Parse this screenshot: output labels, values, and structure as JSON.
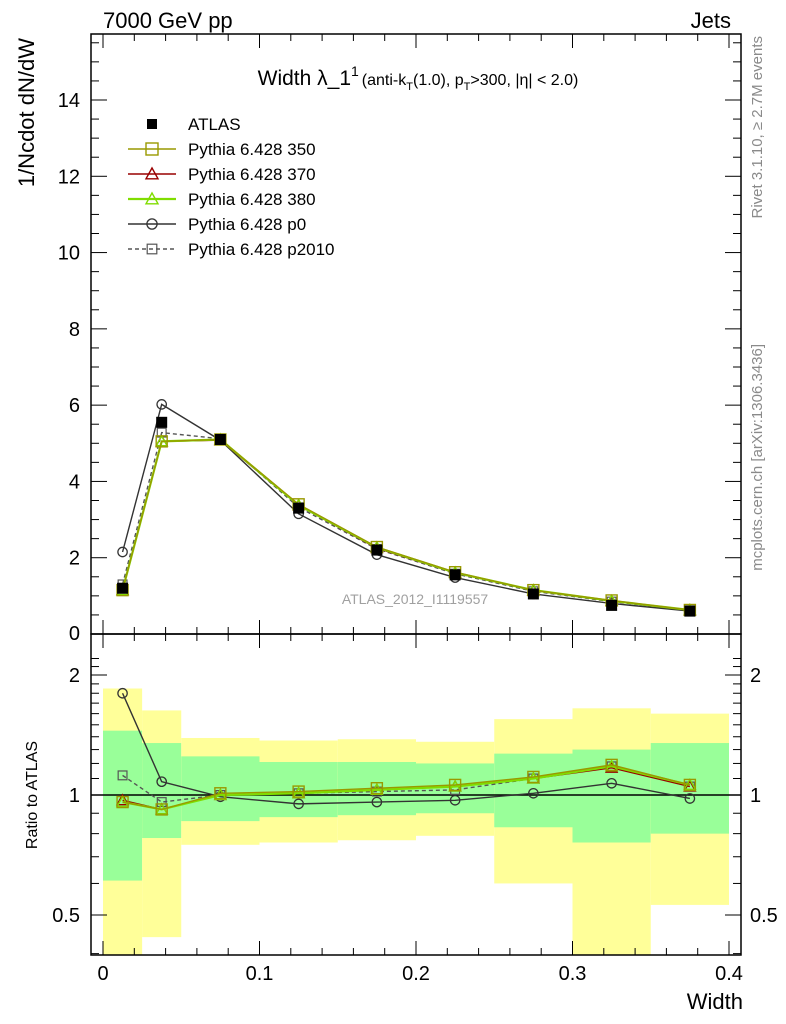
{
  "header": {
    "left": "7000 GeV pp",
    "right": "Jets"
  },
  "side_labels": {
    "rivet": "Rivet 3.1.10, ≥ 2.7M events",
    "mcplots": "mcplots.cern.ch [arXiv:1306.3436]"
  },
  "title": {
    "main": "Width λ_1",
    "sup": "1",
    "sub_pre": "(anti-k",
    "sub_T": "T",
    "sub_mid": "(1.0), p",
    "sub_T2": "T",
    "sub_post": ">300, |η| < 2.0)"
  },
  "watermark": "ATLAS_2012_I1119557",
  "colors": {
    "atlas": "#000000",
    "p350": "#999900",
    "p370": "#990000",
    "p380": "#80dd00",
    "p0": "#333333",
    "p2010": "#555555",
    "band_inner": "#99ff99",
    "band_outer": "#ffff99"
  },
  "chart_data": [
    {
      "type": "line",
      "panel": "main",
      "ylabel": "1/Ncdot dN/dW",
      "xlim": [
        0,
        0.4
      ],
      "ylim": [
        0,
        15.6
      ],
      "yticks": [
        0,
        2,
        4,
        6,
        8,
        10,
        12,
        14
      ],
      "x": [
        0.0125,
        0.0375,
        0.075,
        0.125,
        0.175,
        0.225,
        0.275,
        0.325,
        0.375
      ],
      "x_edges": [
        0,
        0.025,
        0.05,
        0.1,
        0.15,
        0.2,
        0.25,
        0.3,
        0.35,
        0.4
      ],
      "series": [
        {
          "name": "ATLAS",
          "key": "atlas",
          "marker": "filled-square",
          "values": [
            1.2,
            5.55,
            5.1,
            3.3,
            2.2,
            1.55,
            1.05,
            0.75,
            0.6
          ]
        },
        {
          "name": "Pythia 6.428 350",
          "key": "p350",
          "marker": "open-square",
          "values": [
            1.15,
            5.05,
            5.1,
            3.4,
            2.28,
            1.62,
            1.15,
            0.88,
            0.63
          ]
        },
        {
          "name": "Pythia 6.428 370",
          "key": "p370",
          "marker": "open-triangle",
          "values": [
            1.15,
            5.05,
            5.08,
            3.37,
            2.25,
            1.6,
            1.14,
            0.86,
            0.62
          ]
        },
        {
          "name": "Pythia 6.428 380",
          "key": "p380",
          "marker": "open-triangle",
          "values": [
            1.15,
            5.05,
            5.1,
            3.38,
            2.27,
            1.61,
            1.15,
            0.87,
            0.63
          ]
        },
        {
          "name": "Pythia 6.428 p0",
          "key": "p0",
          "marker": "open-circle",
          "values": [
            2.15,
            6.02,
            5.08,
            3.15,
            2.08,
            1.48,
            1.05,
            0.8,
            0.6
          ]
        },
        {
          "name": "Pythia 6.428 p2010",
          "key": "p2010",
          "marker": "open-square-dashed",
          "values": [
            1.3,
            5.28,
            5.12,
            3.32,
            2.23,
            1.58,
            1.12,
            0.85,
            0.62
          ]
        }
      ]
    },
    {
      "type": "line",
      "panel": "ratio",
      "ylabel": "Ratio to ATLAS",
      "xlabel": "Width",
      "xlim": [
        0,
        0.4
      ],
      "ylim": [
        0.35,
        2.3
      ],
      "yticks": [
        0.5,
        1,
        2
      ],
      "xticks": [
        0,
        0.1,
        0.2,
        0.3,
        0.4
      ],
      "x": [
        0.0125,
        0.0375,
        0.075,
        0.125,
        0.175,
        0.225,
        0.275,
        0.325,
        0.375
      ],
      "x_edges": [
        0,
        0.025,
        0.05,
        0.1,
        0.15,
        0.2,
        0.25,
        0.3,
        0.35,
        0.4
      ],
      "band_inner": {
        "low": [
          0.61,
          0.78,
          0.86,
          0.88,
          0.89,
          0.9,
          0.83,
          0.76,
          0.8
        ],
        "high": [
          1.45,
          1.35,
          1.25,
          1.21,
          1.21,
          1.2,
          1.27,
          1.3,
          1.35
        ]
      },
      "band_outer": {
        "low": [
          0.3,
          0.44,
          0.75,
          0.76,
          0.77,
          0.79,
          0.6,
          0.39,
          0.53
        ],
        "high": [
          1.85,
          1.63,
          1.39,
          1.37,
          1.38,
          1.36,
          1.55,
          1.65,
          1.6
        ]
      },
      "series": [
        {
          "name": "Pythia 6.428 350",
          "key": "p350",
          "marker": "open-square",
          "values": [
            0.96,
            0.92,
            1.01,
            1.02,
            1.04,
            1.06,
            1.11,
            1.19,
            1.06
          ]
        },
        {
          "name": "Pythia 6.428 370",
          "key": "p370",
          "marker": "open-triangle",
          "values": [
            0.97,
            0.92,
            1.0,
            1.01,
            1.03,
            1.05,
            1.1,
            1.17,
            1.05
          ]
        },
        {
          "name": "Pythia 6.428 380",
          "key": "p380",
          "marker": "open-triangle",
          "values": [
            0.96,
            0.92,
            1.0,
            1.01,
            1.03,
            1.05,
            1.1,
            1.18,
            1.06
          ]
        },
        {
          "name": "Pythia 6.428 p0",
          "key": "p0",
          "marker": "open-circle",
          "values": [
            1.8,
            1.08,
            0.99,
            0.95,
            0.96,
            0.97,
            1.01,
            1.07,
            0.98
          ]
        },
        {
          "name": "Pythia 6.428 p2010",
          "key": "p2010",
          "marker": "open-square-dashed",
          "values": [
            1.12,
            0.96,
            1.0,
            1.01,
            1.02,
            1.03,
            1.1,
            1.18,
            1.05
          ]
        }
      ]
    }
  ]
}
